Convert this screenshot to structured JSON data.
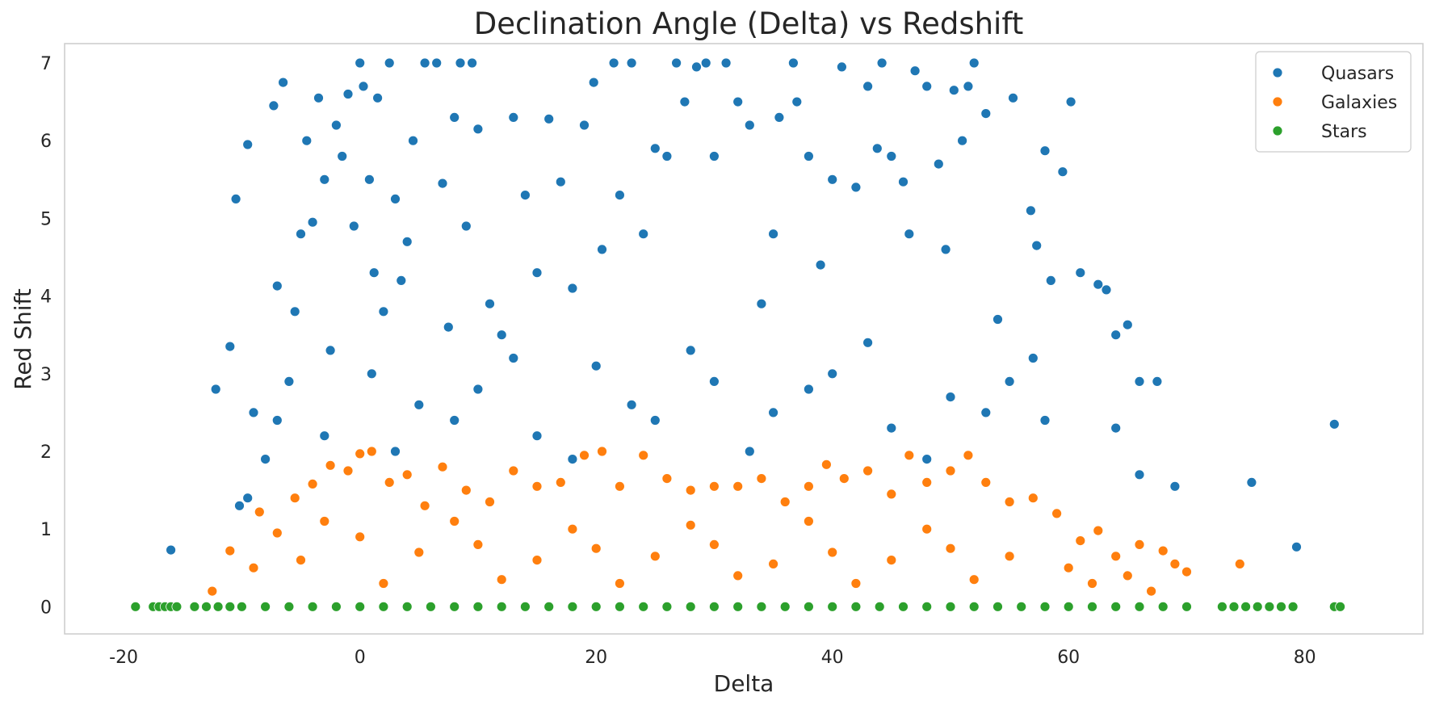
{
  "chart_data": {
    "type": "scatter",
    "title": "Declination Angle (Delta) vs Redshift",
    "xlabel": "Delta",
    "ylabel": "Red Shift",
    "xlim": [
      -25,
      90
    ],
    "ylim": [
      -0.35,
      7.25
    ],
    "x_ticks": [
      -20,
      0,
      20,
      40,
      60,
      80
    ],
    "y_ticks": [
      0,
      1,
      2,
      3,
      4,
      5,
      6,
      7
    ],
    "grid": false,
    "legend_position": "top-right",
    "series": [
      {
        "name": "Quasars",
        "color": "#1f77b4",
        "points": [
          [
            -16,
            0.73
          ],
          [
            -12.2,
            2.8
          ],
          [
            -11,
            3.35
          ],
          [
            -10.5,
            5.25
          ],
          [
            -10.2,
            1.3
          ],
          [
            -9.5,
            5.95
          ],
          [
            -9,
            2.5
          ],
          [
            -8,
            1.9
          ],
          [
            -7.3,
            6.45
          ],
          [
            -7,
            4.13
          ],
          [
            -6.5,
            6.75
          ],
          [
            -6,
            2.9
          ],
          [
            -5.5,
            3.8
          ],
          [
            -5,
            4.8
          ],
          [
            -4.5,
            6.0
          ],
          [
            -4,
            4.95
          ],
          [
            -3.5,
            6.55
          ],
          [
            -3,
            5.5
          ],
          [
            -2.5,
            3.3
          ],
          [
            -2,
            6.2
          ],
          [
            -1.5,
            5.8
          ],
          [
            -1,
            6.6
          ],
          [
            -0.5,
            4.9
          ],
          [
            0,
            7.0
          ],
          [
            0.3,
            6.7
          ],
          [
            0.8,
            5.5
          ],
          [
            1.2,
            4.3
          ],
          [
            1.5,
            6.55
          ],
          [
            2,
            3.8
          ],
          [
            2.5,
            7.0
          ],
          [
            3,
            5.25
          ],
          [
            3.5,
            4.2
          ],
          [
            4,
            4.7
          ],
          [
            4.5,
            6.0
          ],
          [
            5.5,
            7.0
          ],
          [
            6.5,
            7.0
          ],
          [
            7,
            5.45
          ],
          [
            7.5,
            3.6
          ],
          [
            8,
            6.3
          ],
          [
            8.5,
            7.0
          ],
          [
            9,
            4.9
          ],
          [
            9.5,
            7.0
          ],
          [
            10,
            6.15
          ],
          [
            11,
            3.9
          ],
          [
            12,
            3.5
          ],
          [
            13,
            6.3
          ],
          [
            14,
            5.3
          ],
          [
            15,
            4.3
          ],
          [
            16,
            6.28
          ],
          [
            17,
            5.47
          ],
          [
            18,
            4.1
          ],
          [
            19,
            6.2
          ],
          [
            19.8,
            6.75
          ],
          [
            20.5,
            4.6
          ],
          [
            21.5,
            7.0
          ],
          [
            22,
            5.3
          ],
          [
            23,
            7.0
          ],
          [
            24,
            4.8
          ],
          [
            25,
            5.9
          ],
          [
            26,
            5.8
          ],
          [
            26.8,
            7.0
          ],
          [
            27.5,
            6.5
          ],
          [
            28.5,
            6.95
          ],
          [
            29.3,
            7.0
          ],
          [
            30,
            5.8
          ],
          [
            31,
            7.0
          ],
          [
            32,
            6.5
          ],
          [
            33,
            6.2
          ],
          [
            34,
            3.9
          ],
          [
            35,
            4.8
          ],
          [
            35.5,
            6.3
          ],
          [
            36.7,
            7.0
          ],
          [
            37,
            6.5
          ],
          [
            38,
            5.8
          ],
          [
            39,
            4.4
          ],
          [
            40,
            5.5
          ],
          [
            40.8,
            6.95
          ],
          [
            42,
            5.4
          ],
          [
            43,
            6.7
          ],
          [
            43.8,
            5.9
          ],
          [
            44.2,
            7.0
          ],
          [
            45,
            5.8
          ],
          [
            46,
            5.47
          ],
          [
            46.5,
            4.8
          ],
          [
            47,
            6.9
          ],
          [
            48,
            6.7
          ],
          [
            49,
            5.7
          ],
          [
            49.6,
            4.6
          ],
          [
            50.3,
            6.65
          ],
          [
            51,
            6.0
          ],
          [
            51.5,
            6.7
          ],
          [
            52,
            7.0
          ],
          [
            53,
            6.35
          ],
          [
            54,
            3.7
          ],
          [
            55.3,
            6.55
          ],
          [
            56.8,
            5.1
          ],
          [
            57.3,
            4.65
          ],
          [
            58,
            5.87
          ],
          [
            58.5,
            4.2
          ],
          [
            59.5,
            5.6
          ],
          [
            60.2,
            6.5
          ],
          [
            61,
            4.3
          ],
          [
            62.5,
            4.15
          ],
          [
            63.2,
            4.08
          ],
          [
            64,
            3.5
          ],
          [
            65,
            3.63
          ],
          [
            66,
            2.9
          ],
          [
            67.5,
            2.9
          ],
          [
            69,
            1.55
          ],
          [
            75.5,
            1.6
          ],
          [
            79.3,
            0.77
          ],
          [
            82.5,
            2.35
          ],
          [
            1,
            3.0
          ],
          [
            5,
            2.6
          ],
          [
            10,
            2.8
          ],
          [
            15,
            2.2
          ],
          [
            20,
            3.1
          ],
          [
            25,
            2.4
          ],
          [
            30,
            2.9
          ],
          [
            35,
            2.5
          ],
          [
            40,
            3.0
          ],
          [
            45,
            2.3
          ],
          [
            50,
            2.7
          ],
          [
            55,
            2.9
          ],
          [
            58,
            2.4
          ],
          [
            3,
            2.0
          ],
          [
            8,
            2.4
          ],
          [
            13,
            3.2
          ],
          [
            18,
            1.9
          ],
          [
            23,
            2.6
          ],
          [
            28,
            3.3
          ],
          [
            33,
            2.0
          ],
          [
            38,
            2.8
          ],
          [
            43,
            3.4
          ],
          [
            48,
            1.9
          ],
          [
            53,
            2.5
          ],
          [
            57,
            3.2
          ],
          [
            -3,
            2.2
          ],
          [
            -7,
            2.4
          ],
          [
            -9.5,
            1.4
          ],
          [
            64,
            2.3
          ],
          [
            66,
            1.7
          ]
        ]
      },
      {
        "name": "Galaxies",
        "color": "#ff7f0e",
        "points": [
          [
            -12.5,
            0.2
          ],
          [
            -11,
            0.72
          ],
          [
            -8.5,
            1.22
          ],
          [
            -7,
            0.95
          ],
          [
            -5.5,
            1.4
          ],
          [
            -4,
            1.58
          ],
          [
            -2.5,
            1.82
          ],
          [
            -1,
            1.75
          ],
          [
            0,
            1.97
          ],
          [
            1,
            2.0
          ],
          [
            2.5,
            1.6
          ],
          [
            4,
            1.7
          ],
          [
            5.5,
            1.3
          ],
          [
            7,
            1.8
          ],
          [
            9,
            1.5
          ],
          [
            11,
            1.35
          ],
          [
            13,
            1.75
          ],
          [
            15,
            1.55
          ],
          [
            17,
            1.6
          ],
          [
            19,
            1.95
          ],
          [
            20.5,
            2.0
          ],
          [
            22,
            1.55
          ],
          [
            24,
            1.95
          ],
          [
            26,
            1.65
          ],
          [
            28,
            1.5
          ],
          [
            30,
            1.55
          ],
          [
            32,
            1.55
          ],
          [
            34,
            1.65
          ],
          [
            36,
            1.35
          ],
          [
            38,
            1.55
          ],
          [
            39.5,
            1.83
          ],
          [
            41,
            1.65
          ],
          [
            43,
            1.75
          ],
          [
            45,
            1.45
          ],
          [
            46.5,
            1.95
          ],
          [
            48,
            1.6
          ],
          [
            50,
            1.75
          ],
          [
            51.5,
            1.95
          ],
          [
            53,
            1.6
          ],
          [
            55,
            1.35
          ],
          [
            57,
            1.4
          ],
          [
            59,
            1.2
          ],
          [
            61,
            0.85
          ],
          [
            62.5,
            0.98
          ],
          [
            64,
            0.65
          ],
          [
            66,
            0.8
          ],
          [
            68,
            0.72
          ],
          [
            69,
            0.55
          ],
          [
            70,
            0.45
          ],
          [
            74.5,
            0.55
          ],
          [
            0,
            0.9
          ],
          [
            5,
            0.7
          ],
          [
            10,
            0.8
          ],
          [
            15,
            0.6
          ],
          [
            20,
            0.75
          ],
          [
            25,
            0.65
          ],
          [
            30,
            0.8
          ],
          [
            35,
            0.55
          ],
          [
            40,
            0.7
          ],
          [
            45,
            0.6
          ],
          [
            50,
            0.75
          ],
          [
            55,
            0.65
          ],
          [
            60,
            0.5
          ],
          [
            65,
            0.4
          ],
          [
            -5,
            0.6
          ],
          [
            -9,
            0.5
          ],
          [
            2,
            0.3
          ],
          [
            12,
            0.35
          ],
          [
            22,
            0.3
          ],
          [
            32,
            0.4
          ],
          [
            42,
            0.3
          ],
          [
            52,
            0.35
          ],
          [
            62,
            0.3
          ],
          [
            67,
            0.2
          ],
          [
            -3,
            1.1
          ],
          [
            8,
            1.1
          ],
          [
            18,
            1.0
          ],
          [
            28,
            1.05
          ],
          [
            38,
            1.1
          ],
          [
            48,
            1.0
          ]
        ]
      },
      {
        "name": "Stars",
        "color": "#2ca02c",
        "points": [
          [
            -19,
            0
          ],
          [
            -17.5,
            0
          ],
          [
            -17,
            0
          ],
          [
            -16.5,
            0
          ],
          [
            -16,
            0
          ],
          [
            -15.5,
            0
          ],
          [
            -14,
            0
          ],
          [
            -13,
            0
          ],
          [
            -12,
            0
          ],
          [
            -11,
            0
          ],
          [
            -10,
            0
          ],
          [
            -8,
            0
          ],
          [
            -6,
            0
          ],
          [
            -4,
            0
          ],
          [
            -2,
            0
          ],
          [
            0,
            0
          ],
          [
            2,
            0
          ],
          [
            4,
            0
          ],
          [
            6,
            0
          ],
          [
            8,
            0
          ],
          [
            10,
            0
          ],
          [
            12,
            0
          ],
          [
            14,
            0
          ],
          [
            16,
            0
          ],
          [
            18,
            0
          ],
          [
            20,
            0
          ],
          [
            22,
            0
          ],
          [
            24,
            0
          ],
          [
            26,
            0
          ],
          [
            28,
            0
          ],
          [
            30,
            0
          ],
          [
            32,
            0
          ],
          [
            34,
            0
          ],
          [
            36,
            0
          ],
          [
            38,
            0
          ],
          [
            40,
            0
          ],
          [
            42,
            0
          ],
          [
            44,
            0
          ],
          [
            46,
            0
          ],
          [
            48,
            0
          ],
          [
            50,
            0
          ],
          [
            52,
            0
          ],
          [
            54,
            0
          ],
          [
            56,
            0
          ],
          [
            58,
            0
          ],
          [
            60,
            0
          ],
          [
            62,
            0
          ],
          [
            64,
            0
          ],
          [
            66,
            0
          ],
          [
            68,
            0
          ],
          [
            70,
            0
          ],
          [
            73,
            0
          ],
          [
            74,
            0
          ],
          [
            75,
            0
          ],
          [
            76,
            0
          ],
          [
            77,
            0
          ],
          [
            78,
            0
          ],
          [
            79,
            0
          ],
          [
            82.5,
            0
          ],
          [
            83,
            0
          ]
        ]
      }
    ]
  }
}
